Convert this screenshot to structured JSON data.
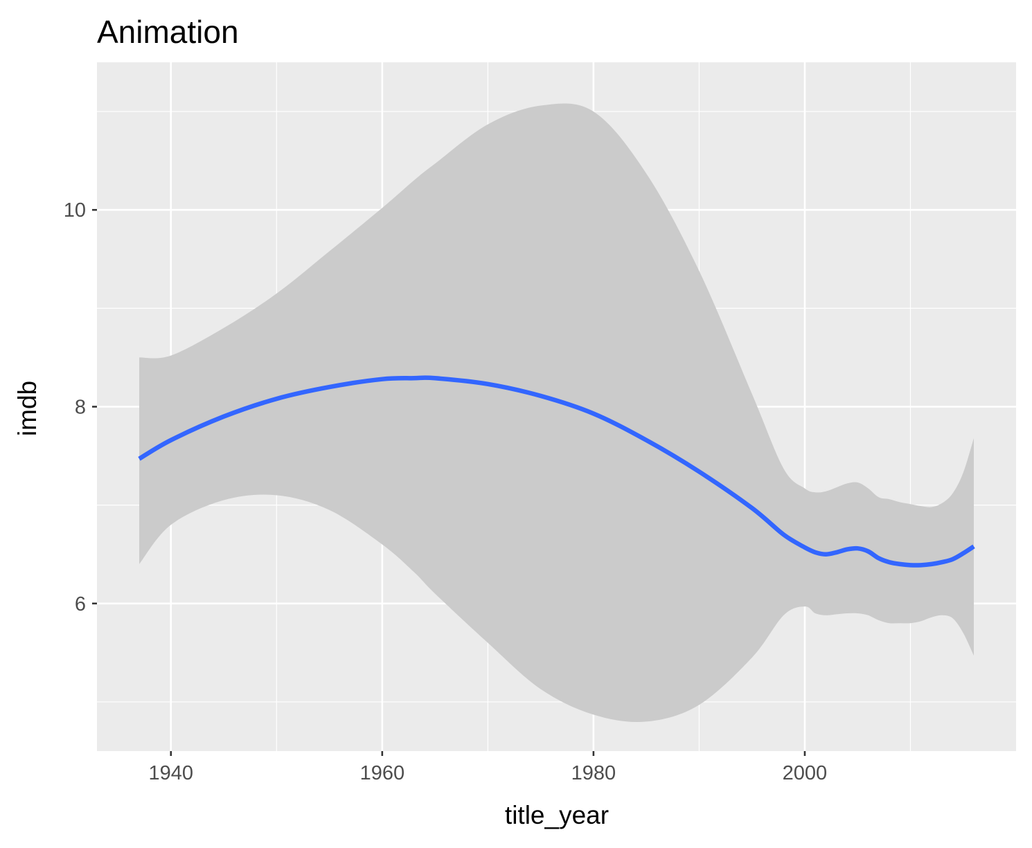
{
  "chart_data": {
    "type": "line",
    "title": "Animation",
    "xlabel": "title_year",
    "ylabel": "imdb",
    "xlim": [
      1933,
      2020
    ],
    "ylim": [
      4.5,
      11.5
    ],
    "x_ticks": [
      1940,
      1960,
      1980,
      2000
    ],
    "x_tick_labels": [
      "1940",
      "1960",
      "1980",
      "2000"
    ],
    "x_minor_ticks": [
      1950,
      1970,
      1990,
      2010
    ],
    "y_ticks": [
      6,
      8,
      10
    ],
    "y_tick_labels": [
      "6",
      "8",
      "10"
    ],
    "y_minor_ticks": [
      5,
      7,
      9,
      11
    ],
    "grid": true,
    "legend": "none",
    "colors": {
      "line": "#3366ff",
      "ribbon": "#cbcbcb",
      "panel": "#ebebeb",
      "grid": "#ffffff"
    },
    "series": [
      {
        "x": [
          1937,
          1940,
          1945,
          1950,
          1955,
          1960,
          1963,
          1965,
          1970,
          1975,
          1980,
          1985,
          1990,
          1995,
          1998,
          2000,
          2001,
          2002,
          2003,
          2004,
          2005,
          2006,
          2007,
          2008,
          2009,
          2010,
          2011,
          2012,
          2013,
          2014,
          2015,
          2016
        ],
        "y": [
          7.47,
          7.66,
          7.9,
          8.08,
          8.2,
          8.28,
          8.29,
          8.29,
          8.23,
          8.11,
          7.93,
          7.66,
          7.34,
          6.97,
          6.7,
          6.57,
          6.52,
          6.5,
          6.52,
          6.55,
          6.56,
          6.53,
          6.46,
          6.42,
          6.4,
          6.39,
          6.39,
          6.4,
          6.42,
          6.45,
          6.51,
          6.58
        ],
        "lower": [
          6.4,
          6.8,
          7.05,
          7.1,
          6.95,
          6.6,
          6.32,
          6.1,
          5.6,
          5.13,
          4.87,
          4.8,
          4.97,
          5.45,
          5.88,
          5.97,
          5.9,
          5.88,
          5.89,
          5.9,
          5.9,
          5.88,
          5.83,
          5.8,
          5.8,
          5.8,
          5.82,
          5.86,
          5.88,
          5.85,
          5.7,
          5.47
        ],
        "upper": [
          8.5,
          8.52,
          8.8,
          9.15,
          9.58,
          10.02,
          10.3,
          10.47,
          10.87,
          11.06,
          11.0,
          10.37,
          9.38,
          8.13,
          7.37,
          7.17,
          7.13,
          7.14,
          7.18,
          7.22,
          7.23,
          7.17,
          7.08,
          7.06,
          7.03,
          7.01,
          6.99,
          6.98,
          7.02,
          7.12,
          7.33,
          7.68
        ]
      }
    ]
  }
}
